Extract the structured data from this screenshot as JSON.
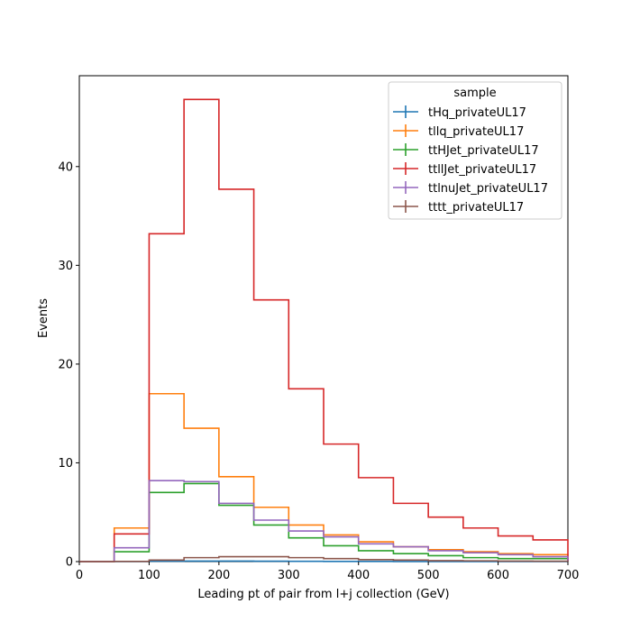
{
  "chart_data": {
    "type": "histogram-step",
    "xlabel": "Leading pt of pair from l+j collection (GeV)",
    "ylabel": "Events",
    "xlim": [
      0,
      700
    ],
    "ylim": [
      0,
      49.2
    ],
    "xticks": [
      0,
      100,
      200,
      300,
      400,
      500,
      600,
      700
    ],
    "yticks": [
      0,
      10,
      20,
      30,
      40
    ],
    "legend": {
      "title": "sample",
      "placement": "top-right"
    },
    "bin_edges": [
      0,
      50,
      100,
      150,
      200,
      250,
      300,
      350,
      400,
      450,
      500,
      550,
      600,
      650,
      700
    ],
    "series": [
      {
        "name": "tHq_privateUL17",
        "color": "#1f77b4",
        "values": [
          0,
          0.01,
          0.04,
          0.05,
          0.05,
          0.04,
          0.03,
          0.02,
          0.02,
          0.01,
          0.01,
          0.01,
          0.01,
          0.01
        ]
      },
      {
        "name": "tllq_privateUL17",
        "color": "#ff7f0e",
        "values": [
          0,
          3.4,
          17.0,
          13.5,
          8.6,
          5.5,
          3.7,
          2.7,
          2.0,
          1.5,
          1.2,
          1.0,
          0.8,
          0.7
        ]
      },
      {
        "name": "ttHJet_privateUL17",
        "color": "#2ca02c",
        "values": [
          0,
          1.0,
          7.0,
          7.9,
          5.7,
          3.7,
          2.4,
          1.6,
          1.1,
          0.8,
          0.6,
          0.4,
          0.3,
          0.3
        ]
      },
      {
        "name": "ttllJet_privateUL17",
        "color": "#d62728",
        "values": [
          0,
          2.8,
          33.2,
          46.8,
          37.7,
          26.5,
          17.5,
          11.9,
          8.5,
          5.9,
          4.5,
          3.4,
          2.6,
          2.2
        ]
      },
      {
        "name": "ttlnuJet_privateUL17",
        "color": "#9467bd",
        "values": [
          0,
          1.4,
          8.2,
          8.1,
          5.9,
          4.2,
          3.1,
          2.5,
          1.8,
          1.5,
          1.1,
          0.9,
          0.7,
          0.5
        ]
      },
      {
        "name": "tttt_privateUL17",
        "color": "#8c564b",
        "values": [
          0,
          0.02,
          0.15,
          0.4,
          0.5,
          0.5,
          0.4,
          0.3,
          0.2,
          0.15,
          0.1,
          0.08,
          0.05,
          0.04
        ]
      }
    ]
  }
}
